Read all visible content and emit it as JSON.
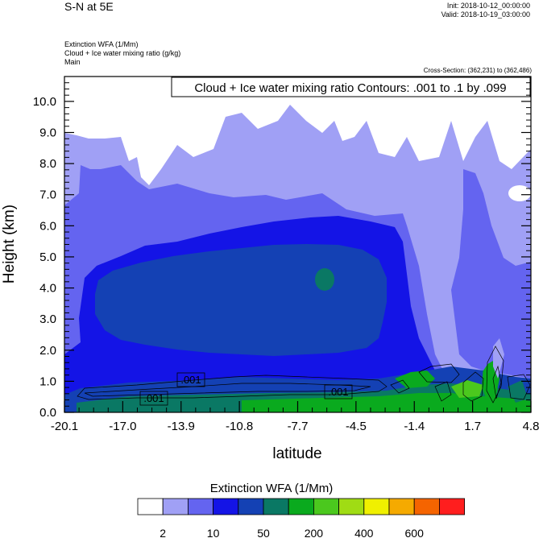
{
  "header": {
    "title": "S-N at 5E",
    "init": "Init: 2018-10-12_00:00:00",
    "valid": "Valid: 2018-10-19_03:00:00",
    "field1": "Extinction WFA   (1/Mm)",
    "field2": "Cloud + Ice water mixing ratio   (g/kg)",
    "field3": "Main",
    "cross_section": "Cross-Section: (362,231) to (362,486)"
  },
  "chart_data": {
    "type": "heatmap",
    "title": "S-N at 5E",
    "xlabel": "latitude",
    "ylabel": "Height (km)",
    "x_ticks": [
      "-20.1",
      "-17.0",
      "-13.9",
      "-10.8",
      "-7.7",
      "-4.5",
      "-1.4",
      "1.7",
      "4.8"
    ],
    "y_ticks": [
      "0.0",
      "1.0",
      "2.0",
      "3.0",
      "4.0",
      "5.0",
      "6.0",
      "7.0",
      "8.0",
      "9.0",
      "10.0"
    ],
    "xlim": [
      -20.1,
      4.8
    ],
    "ylim": [
      0,
      10.8
    ],
    "contour_title": "Cloud + Ice water mixing ratio Contours: .001 to .1 by .099",
    "contour_labels": [
      ".001",
      ".001",
      ".001"
    ],
    "legend_title": "Extinction WFA  (1/Mm)",
    "legend_labels": [
      "2",
      "10",
      "50",
      "200",
      "400",
      "600"
    ],
    "colors": [
      "#ffffff",
      "#a0a0f5",
      "#6464f0",
      "#1414e6",
      "#1441b4",
      "#0a7864",
      "#0aaa1e",
      "#4bc81e",
      "#a0dc14",
      "#f0f000",
      "#f5aa00",
      "#f56400",
      "#ff1e1e"
    ]
  }
}
